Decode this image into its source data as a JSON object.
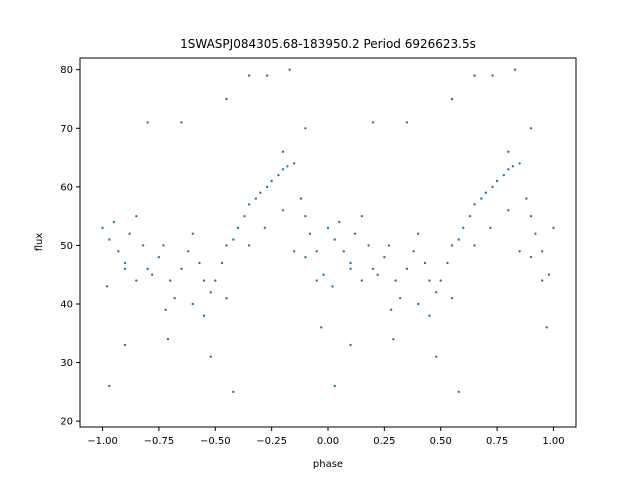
{
  "chart_data": {
    "type": "scatter",
    "title": "1SWASPJ084305.68-183950.2 Period 6926623.5s",
    "xlabel": "phase",
    "ylabel": "flux",
    "xlim": [
      -1.1,
      1.1
    ],
    "ylim": [
      19.0,
      82.0
    ],
    "xticks": [
      -1.0,
      -0.75,
      -0.5,
      -0.25,
      0.0,
      0.25,
      0.5,
      0.75,
      1.0
    ],
    "xtick_labels": [
      "−1.00",
      "−0.75",
      "−0.50",
      "−0.25",
      "0.00",
      "0.25",
      "0.50",
      "0.75",
      "1.00"
    ],
    "yticks": [
      20,
      30,
      40,
      50,
      60,
      70,
      80
    ],
    "ytick_labels": [
      "20",
      "30",
      "40",
      "50",
      "60",
      "70",
      "80"
    ],
    "grid": false,
    "legend": "none",
    "marker_color": "#1f77b4",
    "series": [
      {
        "x": [
          -1.0,
          -0.97,
          -0.95,
          -0.93,
          -0.9,
          -0.88,
          -0.85,
          -0.82,
          -0.8,
          -0.78,
          -0.75,
          -0.73,
          -0.7,
          -0.68,
          -0.65,
          -0.62,
          -0.6,
          -0.57,
          -0.55,
          -0.52,
          -0.5,
          -0.47,
          -0.45,
          -0.42,
          -0.4,
          -0.37,
          -0.35,
          -0.32,
          -0.3,
          -0.27,
          -0.25,
          -0.22,
          -0.2,
          -0.18,
          -0.15,
          -0.12,
          -0.1,
          -0.08,
          -0.05,
          -0.02,
          0.0,
          0.03,
          0.05,
          0.07,
          0.1,
          0.12,
          0.15,
          0.18,
          0.2,
          0.22,
          0.25,
          0.27,
          0.3,
          0.32,
          0.35,
          0.38,
          0.4,
          0.43,
          0.45,
          0.48,
          0.5,
          0.53,
          0.55,
          0.58,
          0.6,
          0.63,
          0.65,
          0.68,
          0.7,
          0.73,
          0.75,
          0.78,
          0.8,
          0.82,
          0.85,
          0.88,
          0.9,
          0.92,
          0.95,
          0.98,
          1.0
        ],
        "y": [
          53,
          51,
          54,
          49,
          47,
          52,
          55,
          50,
          46,
          45,
          48,
          50,
          44,
          41,
          46,
          49,
          52,
          47,
          44,
          42,
          44,
          47,
          50,
          51,
          53,
          55,
          57,
          58,
          59,
          60,
          61,
          62,
          63,
          63.5,
          64,
          58,
          55,
          52,
          49,
          45,
          53,
          51,
          54,
          49,
          47,
          52,
          55,
          50,
          46,
          45,
          48,
          50,
          44,
          41,
          46,
          49,
          52,
          47,
          44,
          42,
          44,
          47,
          50,
          51,
          53,
          55,
          57,
          58,
          59,
          60,
          61,
          62,
          63,
          63.5,
          64,
          58,
          55,
          52,
          49,
          45,
          53
        ]
      },
      {
        "x": [
          -0.98,
          -0.9,
          -0.85,
          -0.72,
          -0.6,
          -0.55,
          -0.45,
          -0.35,
          -0.28,
          -0.2,
          -0.15,
          -0.1,
          -0.05,
          0.02,
          0.1,
          0.15,
          0.28,
          0.4,
          0.45,
          0.55,
          0.65,
          0.72,
          0.8,
          0.85,
          0.9,
          0.95
        ],
        "y": [
          43,
          46,
          44,
          39,
          40,
          38,
          41,
          50,
          53,
          56,
          49,
          48,
          44,
          43,
          46,
          44,
          39,
          40,
          38,
          41,
          50,
          53,
          56,
          49,
          48,
          44
        ]
      },
      {
        "x": [
          -0.97,
          -0.9,
          -0.8,
          -0.71,
          -0.65,
          -0.52,
          -0.45,
          -0.35,
          -0.27,
          -0.2,
          -0.17,
          -0.1,
          -0.03,
          0.03,
          0.1,
          0.2,
          0.29,
          0.35,
          0.48,
          0.55,
          0.65,
          0.73,
          0.8,
          0.83,
          0.9,
          0.97,
          -0.42,
          0.58
        ],
        "y": [
          26,
          33,
          71,
          34,
          71,
          31,
          75,
          79,
          79,
          66,
          80,
          70,
          36,
          26,
          33,
          71,
          34,
          71,
          31,
          75,
          79,
          79,
          66,
          80,
          70,
          36,
          25,
          25
        ]
      }
    ]
  }
}
